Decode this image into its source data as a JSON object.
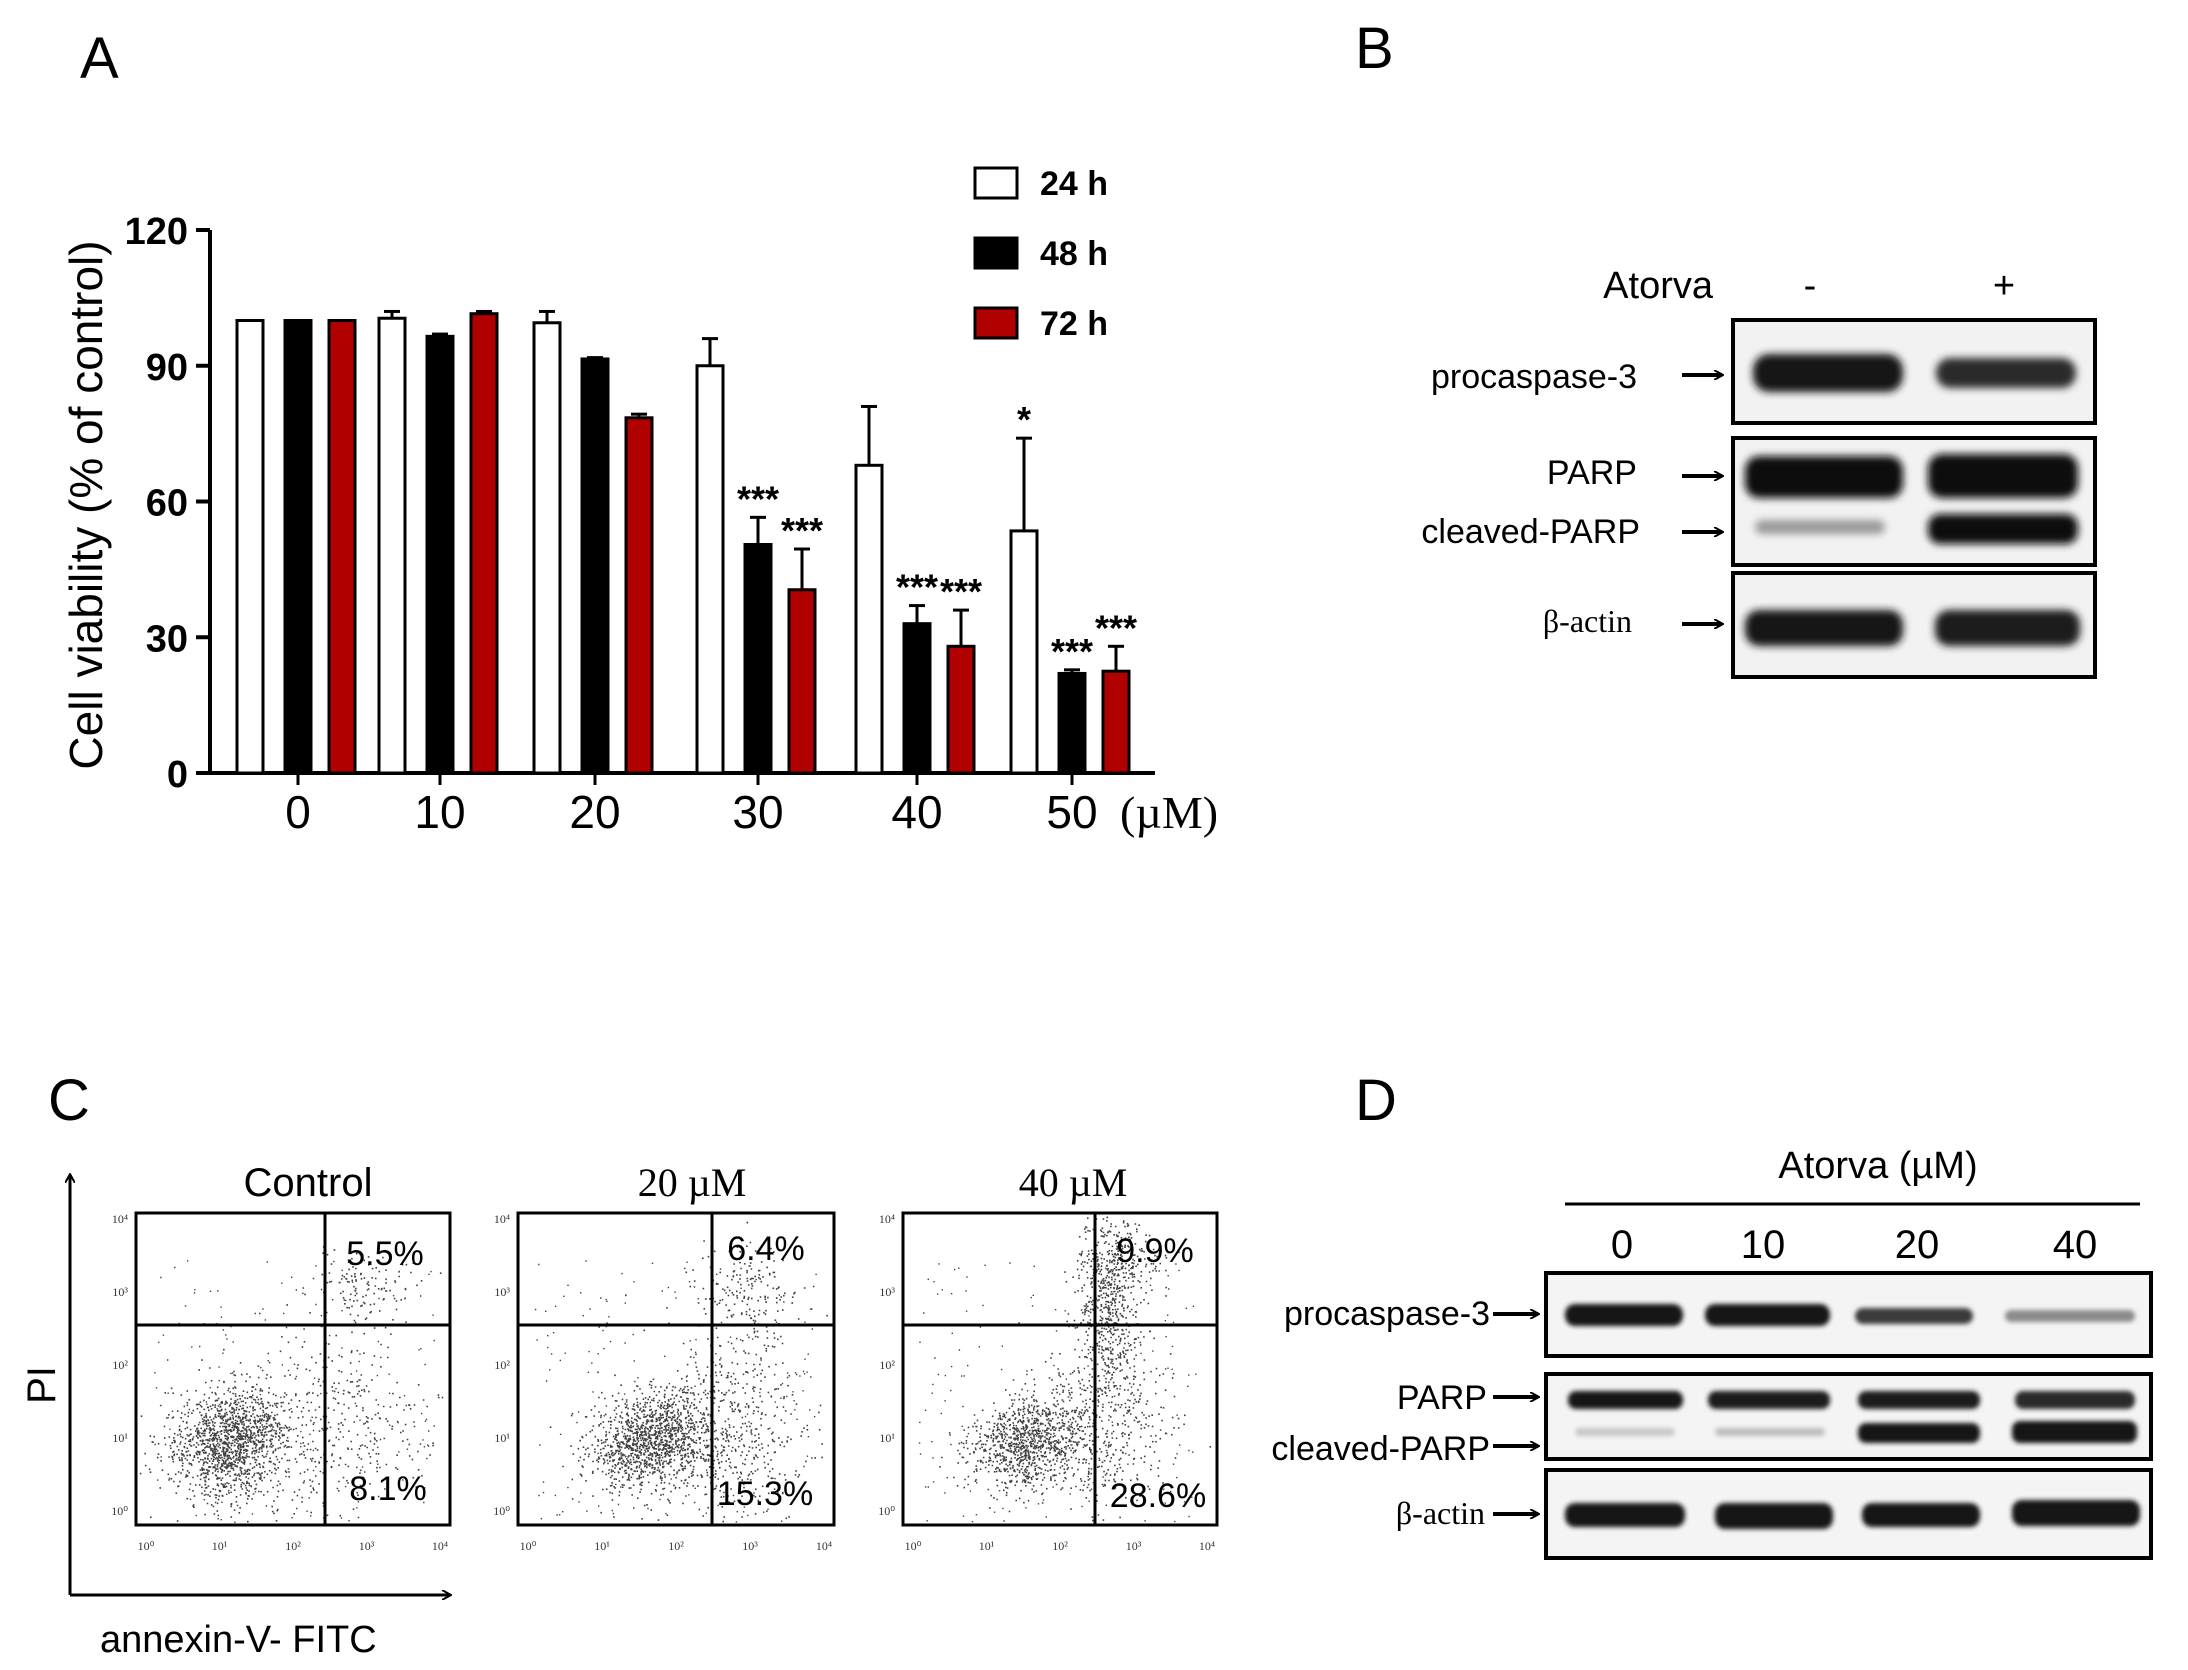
{
  "panel_labels": {
    "a": "A",
    "b": "B",
    "c": "C",
    "d": "D"
  },
  "chart_data": {
    "type": "bar",
    "ylabel": "Cell viability (% of control)",
    "xunit": "(µM)",
    "ylim": [
      0,
      120
    ],
    "yticks": [
      "0",
      "30",
      "60",
      "90",
      "120"
    ],
    "categories": [
      "0",
      "10",
      "20",
      "30",
      "40",
      "50"
    ],
    "legend_position": "top-right",
    "series": [
      {
        "name": "24 h",
        "color": "#ffffff",
        "values": [
          100,
          100.5,
          99.5,
          90,
          68,
          53.5
        ],
        "errors": [
          0,
          1.5,
          2.5,
          6,
          13,
          20.5
        ]
      },
      {
        "name": "48 h",
        "color": "#000000",
        "values": [
          100,
          96.5,
          91.5,
          50.5,
          33,
          22
        ],
        "errors": [
          0,
          0.5,
          0.3,
          6,
          4,
          0.8
        ]
      },
      {
        "name": "72 h",
        "color": "#b00000",
        "values": [
          100,
          101.5,
          78.5,
          40.5,
          28,
          22.5
        ],
        "errors": [
          0,
          0.5,
          0.8,
          9,
          8,
          5.5
        ]
      }
    ],
    "annotations": [
      {
        "category": "30",
        "series": "48 h",
        "text": "***"
      },
      {
        "category": "30",
        "series": "72 h",
        "text": "***"
      },
      {
        "category": "40",
        "series": "48 h",
        "text": "***"
      },
      {
        "category": "40",
        "series": "72 h",
        "text": "***"
      },
      {
        "category": "50",
        "series": "24 h",
        "text": "*"
      },
      {
        "category": "50",
        "series": "48 h",
        "text": "***"
      },
      {
        "category": "50",
        "series": "72 h",
        "text": "***"
      }
    ]
  },
  "blot_b": {
    "treatment_label": "Atorva",
    "lanes": [
      "-",
      "+"
    ],
    "rows": [
      "procaspase-3",
      "PARP",
      "cleaved-PARP",
      "β-actin"
    ]
  },
  "flow_c": {
    "plots": [
      {
        "title": "Control",
        "upper_right": "5.5%",
        "lower_right": "8.1%"
      },
      {
        "title": "20 µM",
        "upper_right": "6.4%",
        "lower_right": "15.3%"
      },
      {
        "title": "40 µM",
        "upper_right": "9.9%",
        "lower_right": "28.6%"
      }
    ],
    "x_axis_label": "annexin-V- FITC",
    "y_axis_label": "PI",
    "tick_labels": [
      "10⁰",
      "10¹",
      "10²",
      "10³",
      "10⁴"
    ]
  },
  "blot_d": {
    "header": "Atorva (µM)",
    "lanes": [
      "0",
      "10",
      "20",
      "40"
    ],
    "rows": [
      "procaspase-3",
      "PARP",
      "cleaved-PARP",
      "β-actin"
    ]
  }
}
